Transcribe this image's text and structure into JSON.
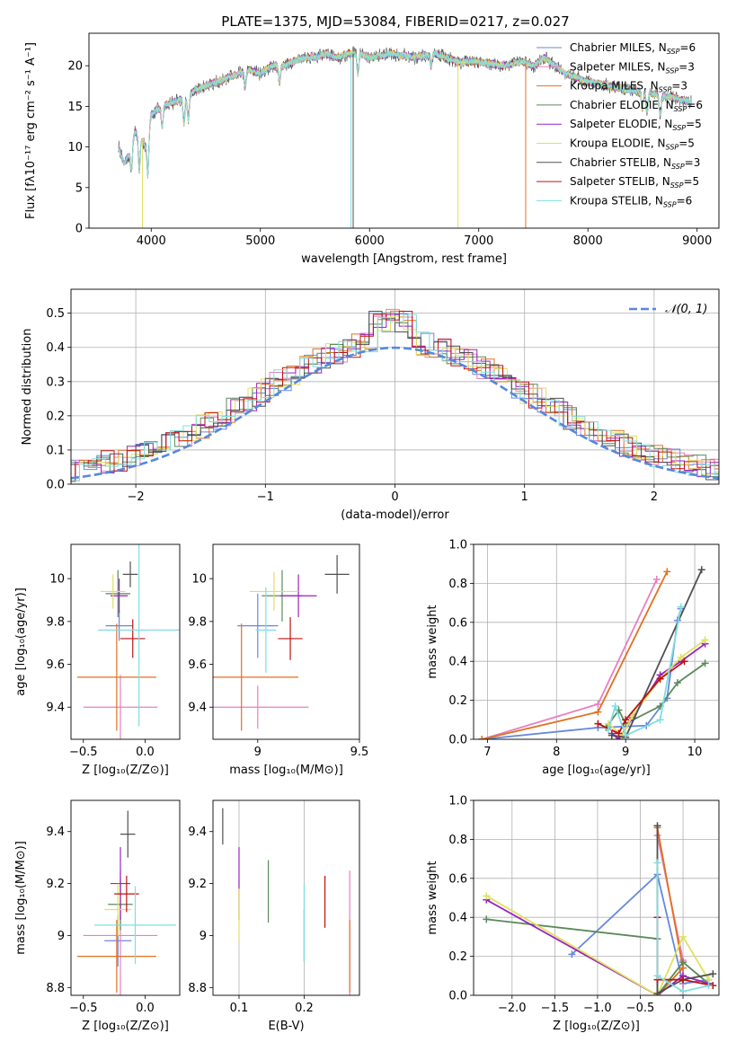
{
  "title": "PLATE=1375, MJD=53084, FIBERID=0217, z=0.027",
  "colors": {
    "Chabrier MILES": "#6688dd",
    "Salpeter MILES": "#e87fc0",
    "Kroupa MILES": "#e07020",
    "Chabrier ELODIE": "#5a8a5a",
    "Salpeter ELODIE": "#9a22c0",
    "Kroupa ELODIE": "#e0e060",
    "Chabrier STELIB": "#505050",
    "Salpeter STELIB": "#c01010",
    "Kroupa STELIB": "#80dde0"
  },
  "legend_order": [
    "Chabrier MILES",
    "Salpeter MILES",
    "Kroupa MILES",
    "Chabrier ELODIE",
    "Salpeter ELODIE",
    "Kroupa ELODIE",
    "Chabrier STELIB",
    "Salpeter STELIB",
    "Kroupa STELIB"
  ],
  "chart_data": [
    {
      "id": "spectrum",
      "type": "line",
      "xlabel": "wavelength [Angstrom, rest frame]",
      "ylabel": "Flux [fλ10⁻¹⁷ erg cm⁻² s⁻¹ A⁻¹]",
      "xlim": [
        3430,
        9200
      ],
      "ylim": [
        0,
        24
      ],
      "xticks": [
        4000,
        5000,
        6000,
        7000,
        8000,
        9000
      ],
      "yticks": [
        0,
        5,
        10,
        15,
        20
      ],
      "legend_position": "right",
      "legend": [
        {
          "model": "Chabrier MILES",
          "text": "Chabrier MILES, N",
          "sub": "SSP",
          "suffix": "=6"
        },
        {
          "model": "Salpeter MILES",
          "text": "Salpeter MILES, N",
          "sub": "SSP",
          "suffix": "=3"
        },
        {
          "model": "Kroupa MILES",
          "text": "Kroupa MILES, N",
          "sub": "SSP",
          "suffix": "=3"
        },
        {
          "model": "Chabrier ELODIE",
          "text": "Chabrier ELODIE, N",
          "sub": "SSP",
          "suffix": "=6"
        },
        {
          "model": "Salpeter ELODIE",
          "text": "Salpeter ELODIE, N",
          "sub": "SSP",
          "suffix": "=5"
        },
        {
          "model": "Kroupa ELODIE",
          "text": "Kroupa ELODIE, N",
          "sub": "SSP",
          "suffix": "=5"
        },
        {
          "model": "Chabrier STELIB",
          "text": "Chabrier STELIB, N",
          "sub": "SSP",
          "suffix": "=3"
        },
        {
          "model": "Salpeter STELIB",
          "text": "Salpeter STELIB, N",
          "sub": "SSP",
          "suffix": "=5"
        },
        {
          "model": "Kroupa STELIB",
          "text": "Kroupa STELIB, N",
          "sub": "SSP",
          "suffix": "=6"
        }
      ],
      "continuum": [
        [
          3700,
          10
        ],
        [
          3750,
          8
        ],
        [
          3800,
          9
        ],
        [
          3850,
          12
        ],
        [
          3900,
          11
        ],
        [
          3950,
          10
        ],
        [
          4000,
          14
        ],
        [
          4100,
          15
        ],
        [
          4200,
          15.5
        ],
        [
          4300,
          16
        ],
        [
          4400,
          17
        ],
        [
          4500,
          17.5
        ],
        [
          4600,
          18
        ],
        [
          4700,
          18.5
        ],
        [
          4800,
          19
        ],
        [
          4900,
          19.5
        ],
        [
          5000,
          19
        ],
        [
          5100,
          20
        ],
        [
          5200,
          20
        ],
        [
          5300,
          20.5
        ],
        [
          5400,
          21
        ],
        [
          5500,
          21
        ],
        [
          5600,
          21.5
        ],
        [
          5700,
          21
        ],
        [
          5800,
          21.5
        ],
        [
          5900,
          21.5
        ],
        [
          6000,
          21
        ],
        [
          6200,
          21.5
        ],
        [
          6400,
          21
        ],
        [
          6600,
          21.5
        ],
        [
          6800,
          20.5
        ],
        [
          7000,
          20.5
        ],
        [
          7200,
          20
        ],
        [
          7400,
          20.5
        ],
        [
          7500,
          20
        ],
        [
          7600,
          21
        ],
        [
          7800,
          19
        ],
        [
          8000,
          18
        ],
        [
          8200,
          17.5
        ],
        [
          8400,
          17
        ],
        [
          8600,
          16.5
        ],
        [
          8800,
          16
        ],
        [
          8950,
          15.5
        ]
      ],
      "features": [
        {
          "x": 3820,
          "depth": 3
        },
        {
          "x": 3890,
          "depth": 4
        },
        {
          "x": 3970,
          "depth": 5
        },
        {
          "x": 4101,
          "depth": 2.5
        },
        {
          "x": 4300,
          "depth": 3
        },
        {
          "x": 4340,
          "depth": 3
        },
        {
          "x": 4861,
          "depth": 2
        },
        {
          "x": 5175,
          "depth": 2
        },
        {
          "x": 5893,
          "depth": 2.5
        },
        {
          "x": 6563,
          "depth": 1.5
        },
        {
          "x": 8498,
          "depth": 2
        },
        {
          "x": 8542,
          "depth": 2.5
        },
        {
          "x": 8662,
          "depth": 2.5
        }
      ],
      "spikes": [
        {
          "x": 3920,
          "model": "Kroupa ELODIE",
          "to": 0
        },
        {
          "x": 5830,
          "model": "Kroupa STELIB",
          "to": 0
        },
        {
          "x": 5850,
          "model": "Chabrier STELIB",
          "to": 0
        },
        {
          "x": 6810,
          "model": "Kroupa ELODIE",
          "to": 0
        },
        {
          "x": 7430,
          "model": "Kroupa MILES",
          "to": 0
        }
      ]
    },
    {
      "id": "residuals",
      "type": "histogram",
      "xlabel": "(data-model)/error",
      "ylabel": "Normed distribution",
      "xlim": [
        -2.5,
        2.5
      ],
      "ylim": [
        0,
        0.57
      ],
      "xticks": [
        -2,
        -1,
        0,
        1,
        2
      ],
      "yticks": [
        0.0,
        0.1,
        0.2,
        0.3,
        0.4,
        0.5
      ],
      "xtick_labels": [
        "−2",
        "−1",
        "0",
        "1",
        "2"
      ],
      "grid": true,
      "legend_position": "top-right",
      "legend": [
        "𝒩(0, 1)"
      ],
      "reference": {
        "name": "𝒩(0, 1)",
        "mean": 0,
        "sigma": 1,
        "color": "#5588dd"
      }
    },
    {
      "id": "age-Z",
      "type": "errorbar",
      "xlabel": "Z [log₁₀(Z/Z⊙)]",
      "ylabel": "age  [log₁₀(age/yr)]",
      "xlim": [
        -0.6,
        0.28
      ],
      "ylim": [
        9.25,
        10.16
      ],
      "xticks": [
        -0.5,
        0.0
      ],
      "yticks": [
        9.4,
        9.6,
        9.8,
        10.0
      ],
      "xtick_labels": [
        "−0.5",
        "0.0"
      ],
      "points": [
        {
          "model": "Chabrier MILES",
          "x": -0.21,
          "y": 9.78,
          "ex": 0.11,
          "ey": 0.07
        },
        {
          "model": "Salpeter MILES",
          "x": -0.2,
          "y": 9.4,
          "ex": 0.3,
          "ey": 0.15
        },
        {
          "model": "Kroupa MILES",
          "x": -0.23,
          "y": 9.54,
          "ex": 0.32,
          "ey": 0.25
        },
        {
          "model": "Chabrier ELODIE",
          "x": -0.22,
          "y": 9.93,
          "ex": 0.1,
          "ey": 0.11
        },
        {
          "model": "Salpeter ELODIE",
          "x": -0.21,
          "y": 9.92,
          "ex": 0.07,
          "ey": 0.08
        },
        {
          "model": "Kroupa ELODIE",
          "x": -0.26,
          "y": 9.94,
          "ex": 0.1,
          "ey": 0.08
        },
        {
          "model": "Chabrier STELIB",
          "x": -0.12,
          "y": 10.02,
          "ex": 0.06,
          "ey": 0.06
        },
        {
          "model": "Salpeter STELIB",
          "x": -0.1,
          "y": 9.72,
          "ex": 0.1,
          "ey": 0.09
        },
        {
          "model": "Kroupa STELIB",
          "x": -0.05,
          "y": 9.76,
          "ex": 0.33,
          "ey": 0.45
        }
      ]
    },
    {
      "id": "age-mass",
      "type": "errorbar",
      "xlabel": "mass [log₁₀(M/M⊙)]",
      "ylabel": "",
      "xlim": [
        8.78,
        9.5
      ],
      "ylim": [
        9.25,
        10.16
      ],
      "xticks": [
        9.0,
        9.5
      ],
      "yticks": [
        9.4,
        9.6,
        9.8,
        10.0
      ],
      "points": [
        {
          "model": "Chabrier MILES",
          "x": 9.0,
          "y": 9.78,
          "ex": 0.1,
          "ey": 0.15
        },
        {
          "model": "Salpeter MILES",
          "x": 9.0,
          "y": 9.4,
          "ex": 0.25,
          "ey": 0.1
        },
        {
          "model": "Kroupa MILES",
          "x": 8.92,
          "y": 9.54,
          "ex": 0.28,
          "ey": 0.25
        },
        {
          "model": "Chabrier ELODIE",
          "x": 9.12,
          "y": 9.92,
          "ex": 0.1,
          "ey": 0.12
        },
        {
          "model": "Salpeter ELODIE",
          "x": 9.2,
          "y": 9.92,
          "ex": 0.09,
          "ey": 0.1
        },
        {
          "model": "Kroupa ELODIE",
          "x": 9.08,
          "y": 9.94,
          "ex": 0.12,
          "ey": 0.09
        },
        {
          "model": "Chabrier STELIB",
          "x": 9.39,
          "y": 10.02,
          "ex": 0.06,
          "ey": 0.09
        },
        {
          "model": "Salpeter STELIB",
          "x": 9.16,
          "y": 9.72,
          "ex": 0.06,
          "ey": 0.1
        },
        {
          "model": "Kroupa STELIB",
          "x": 9.04,
          "y": 9.76,
          "ex": 0.05,
          "ey": 0.2
        }
      ]
    },
    {
      "id": "weight-age",
      "type": "line",
      "xlabel": "age  [log₁₀(age/yr)]",
      "ylabel": "mass weight",
      "xlim": [
        6.8,
        10.35
      ],
      "ylim": [
        0,
        1
      ],
      "xticks": [
        7,
        8,
        9,
        10
      ],
      "yticks": [
        0.0,
        0.2,
        0.4,
        0.6,
        0.8,
        1.0
      ],
      "grid": true,
      "series": [
        {
          "model": "Chabrier MILES",
          "x": [
            6.92,
            8.6,
            9.3,
            9.6,
            9.75,
            9.8
          ],
          "y": [
            0.0,
            0.06,
            0.07,
            0.21,
            0.61,
            0.67
          ]
        },
        {
          "model": "Salpeter MILES",
          "x": [
            6.92,
            8.6,
            9.45
          ],
          "y": [
            0.0,
            0.18,
            0.82
          ]
        },
        {
          "model": "Kroupa MILES",
          "x": [
            6.92,
            8.6,
            9.6
          ],
          "y": [
            0.0,
            0.14,
            0.86
          ]
        },
        {
          "model": "Chabrier ELODIE",
          "x": [
            8.72,
            8.9,
            9.0,
            9.5,
            9.75,
            10.15
          ],
          "y": [
            0.06,
            0.15,
            0.08,
            0.17,
            0.29,
            0.39
          ]
        },
        {
          "model": "Salpeter ELODIE",
          "x": [
            8.8,
            8.9,
            9.1,
            9.5,
            9.8,
            10.15
          ],
          "y": [
            0.03,
            0.0,
            0.11,
            0.33,
            0.4,
            0.49
          ]
        },
        {
          "model": "Kroupa ELODIE",
          "x": [
            8.75,
            8.95,
            9.1,
            9.5,
            9.8,
            10.15
          ],
          "y": [
            0.08,
            0.02,
            0.12,
            0.31,
            0.42,
            0.51
          ]
        },
        {
          "model": "Chabrier STELIB",
          "x": [
            8.8,
            9.0,
            10.1
          ],
          "y": [
            0.02,
            0.01,
            0.87
          ]
        },
        {
          "model": "Salpeter STELIB",
          "x": [
            8.6,
            8.9,
            9.0,
            9.5,
            9.85
          ],
          "y": [
            0.08,
            0.03,
            0.1,
            0.31,
            0.4
          ]
        },
        {
          "model": "Kroupa STELIB",
          "x": [
            8.75,
            8.85,
            9.0,
            9.5,
            9.8
          ],
          "y": [
            0.05,
            0.17,
            0.02,
            0.1,
            0.68
          ]
        }
      ]
    },
    {
      "id": "mass-Z",
      "type": "errorbar",
      "xlabel": "Z [log₁₀(Z/Z⊙)]",
      "ylabel": "mass [log₁₀(M/M⊙)]",
      "xlim": [
        -0.6,
        0.28
      ],
      "ylim": [
        8.77,
        9.52
      ],
      "xticks": [
        -0.5,
        0.0
      ],
      "yticks": [
        8.8,
        9.0,
        9.2,
        9.4
      ],
      "xtick_labels": [
        "−0.5",
        "0.0"
      ],
      "points": [
        {
          "model": "Chabrier MILES",
          "x": -0.22,
          "y": 8.98,
          "ex": 0.11,
          "ey": 0.1
        },
        {
          "model": "Salpeter MILES",
          "x": -0.2,
          "y": 9.0,
          "ex": 0.3,
          "ey": 0.25
        },
        {
          "model": "Kroupa MILES",
          "x": -0.23,
          "y": 8.92,
          "ex": 0.32,
          "ey": 0.14
        },
        {
          "model": "Chabrier ELODIE",
          "x": -0.2,
          "y": 9.12,
          "ex": 0.1,
          "ey": 0.1
        },
        {
          "model": "Salpeter ELODIE",
          "x": -0.2,
          "y": 9.2,
          "ex": 0.08,
          "ey": 0.14
        },
        {
          "model": "Kroupa ELODIE",
          "x": -0.22,
          "y": 9.1,
          "ex": 0.11,
          "ey": 0.1
        },
        {
          "model": "Chabrier STELIB",
          "x": -0.14,
          "y": 9.39,
          "ex": 0.06,
          "ey": 0.09
        },
        {
          "model": "Salpeter STELIB",
          "x": -0.15,
          "y": 9.16,
          "ex": 0.1,
          "ey": 0.07
        },
        {
          "model": "Kroupa STELIB",
          "x": -0.08,
          "y": 9.04,
          "ex": 0.33,
          "ey": 0.15
        }
      ]
    },
    {
      "id": "mass-EBV",
      "type": "errorbar",
      "xlabel": "E(B-V)",
      "ylabel": "",
      "xlim": [
        0.06,
        0.285
      ],
      "ylim": [
        8.77,
        9.52
      ],
      "xticks": [
        0.1,
        0.2
      ],
      "yticks": [
        8.8,
        9.0,
        9.2,
        9.4
      ],
      "grid": "x",
      "points": [
        {
          "model": "Chabrier MILES",
          "x": 0.2,
          "y": 9.0,
          "ex": 0,
          "ey": 0.1
        },
        {
          "model": "Salpeter MILES",
          "x": 0.27,
          "y": 9.0,
          "ex": 0,
          "ey": 0.25
        },
        {
          "model": "Kroupa MILES",
          "x": 0.27,
          "y": 8.92,
          "ex": 0,
          "ey": 0.14
        },
        {
          "model": "Chabrier ELODIE",
          "x": 0.145,
          "y": 9.17,
          "ex": 0,
          "ey": 0.12
        },
        {
          "model": "Salpeter ELODIE",
          "x": 0.1,
          "y": 9.2,
          "ex": 0,
          "ey": 0.14
        },
        {
          "model": "Kroupa ELODIE",
          "x": 0.1,
          "y": 9.08,
          "ex": 0,
          "ey": 0.1
        },
        {
          "model": "Chabrier STELIB",
          "x": 0.075,
          "y": 9.42,
          "ex": 0,
          "ey": 0.07
        },
        {
          "model": "Salpeter STELIB",
          "x": 0.232,
          "y": 9.13,
          "ex": 0,
          "ey": 0.1
        },
        {
          "model": "Kroupa STELIB",
          "x": 0.2,
          "y": 9.05,
          "ex": 0,
          "ey": 0.15
        }
      ]
    },
    {
      "id": "weight-Z",
      "type": "line",
      "xlabel": "Z [log₁₀(Z/Z⊙)]",
      "ylabel": "mass weight",
      "xlim": [
        -2.45,
        0.42
      ],
      "ylim": [
        0,
        1
      ],
      "xticks": [
        -2.0,
        -1.5,
        -1.0,
        -0.5,
        0.0
      ],
      "yticks": [
        0.0,
        0.2,
        0.4,
        0.6,
        0.8,
        1.0
      ],
      "xtick_labels": [
        "−2.0",
        "−1.5",
        "−1.0",
        "−0.5",
        "0.0"
      ],
      "grid": true,
      "series": [
        {
          "model": "Chabrier MILES",
          "x": [
            -1.3,
            -0.3,
            0.0,
            0.3
          ],
          "y": [
            0.21,
            0.62,
            0.06,
            0.08
          ]
        },
        {
          "model": "Salpeter MILES",
          "x": [
            -0.3,
            0.0,
            0.0
          ],
          "y": [
            0.82,
            0.18,
            0.0
          ]
        },
        {
          "model": "Kroupa MILES",
          "x": [
            -0.3,
            0.0,
            -0.3
          ],
          "y": [
            0.86,
            0.14,
            0.0
          ]
        },
        {
          "model": "Chabrier ELODIE",
          "x": [
            -2.3,
            -0.3,
            -0.3,
            0.0,
            0.3
          ],
          "y": [
            0.39,
            0.29,
            0.0,
            0.17,
            0.06
          ]
        },
        {
          "model": "Salpeter ELODIE",
          "x": [
            -2.3,
            -0.3,
            0.0,
            0.3
          ],
          "y": [
            0.49,
            0.0,
            0.1,
            0.06
          ]
        },
        {
          "model": "Kroupa ELODIE",
          "x": [
            -2.3,
            -0.3,
            0.0,
            0.3
          ],
          "y": [
            0.51,
            0.0,
            0.3,
            0.08
          ]
        },
        {
          "model": "Chabrier STELIB",
          "x": [
            -0.3,
            -0.3,
            0.0,
            0.35
          ],
          "y": [
            0.87,
            0.01,
            0.08,
            0.11
          ]
        },
        {
          "model": "Salpeter STELIB",
          "x": [
            -0.3,
            -0.3,
            0.0,
            0.35
          ],
          "y": [
            0.4,
            0.08,
            0.08,
            0.05
          ]
        },
        {
          "model": "Kroupa STELIB",
          "x": [
            -0.3,
            -0.3,
            0.0,
            0.3
          ],
          "y": [
            0.68,
            0.1,
            0.02,
            0.05
          ]
        }
      ]
    }
  ]
}
